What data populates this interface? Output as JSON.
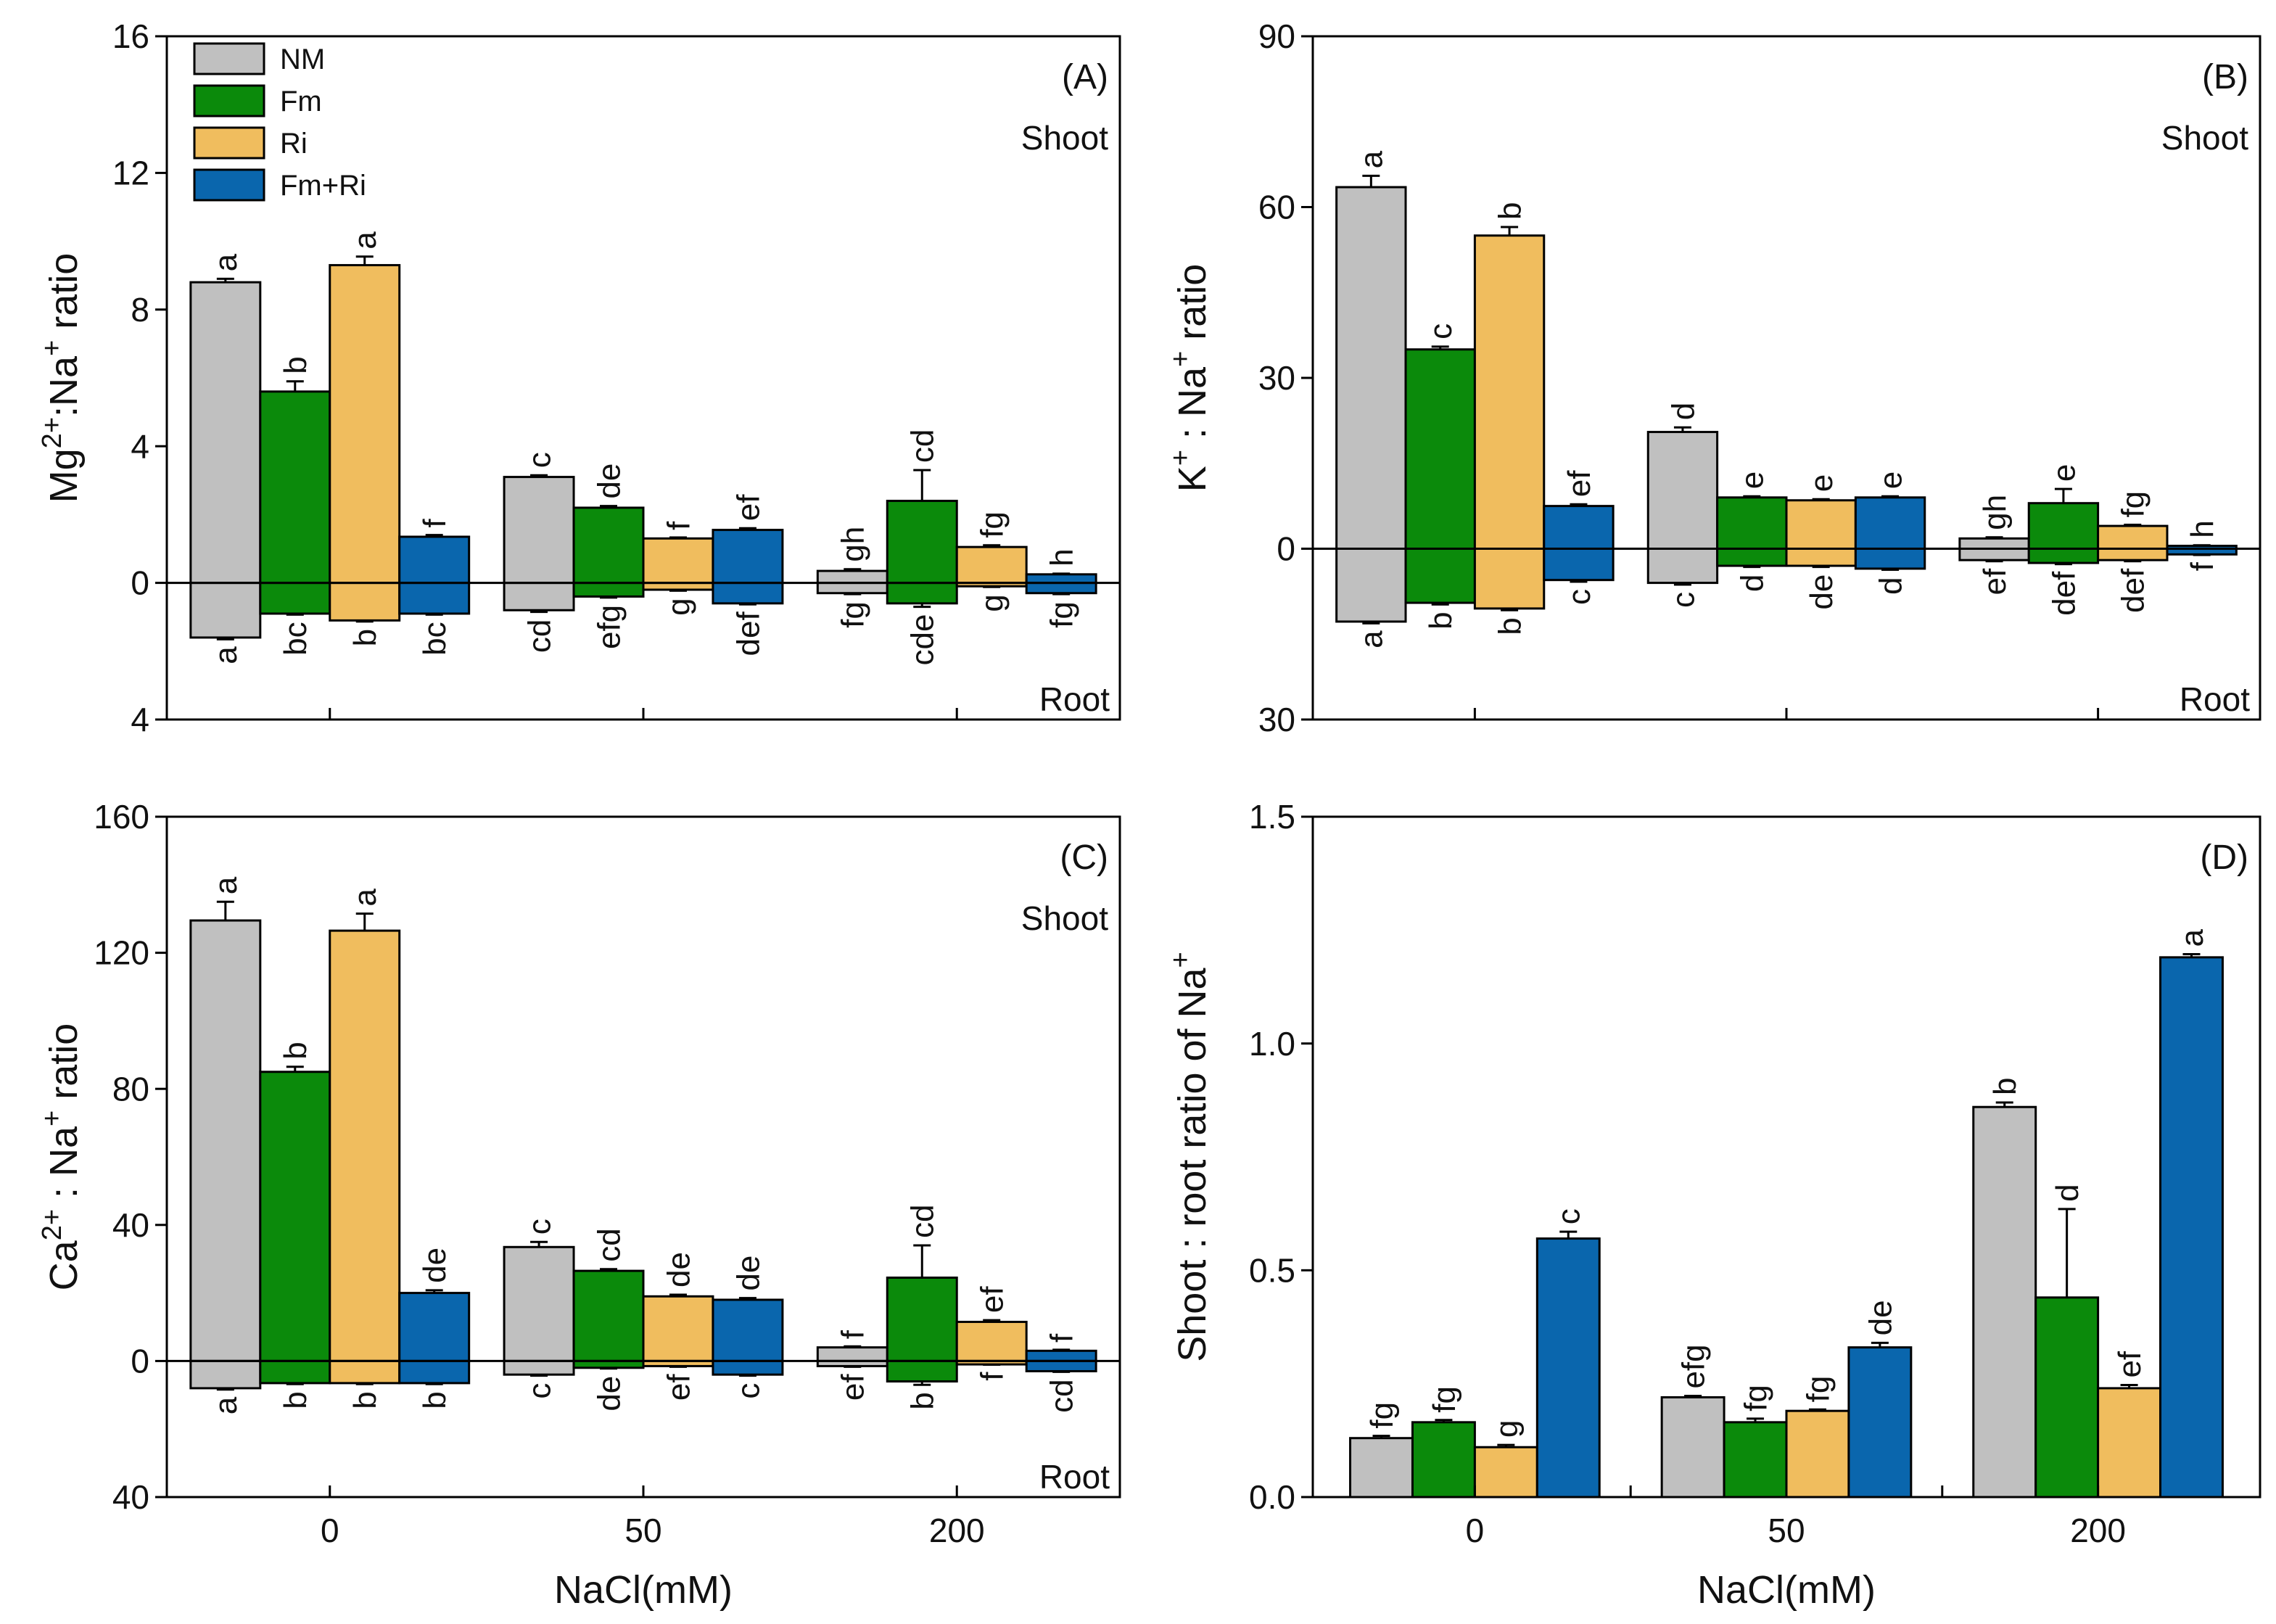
{
  "chart_data": [
    {
      "panel": "(A)",
      "type": "bar",
      "categories": [
        "0",
        "50",
        "200"
      ],
      "xtick_labels_visible": false,
      "xlabel": "",
      "ylabel_parts": [
        {
          "t": "Mg"
        },
        {
          "t": "2+",
          "sup": true
        },
        {
          "t": ":Na"
        },
        {
          "t": "+",
          "sup": true
        },
        {
          "t": " ratio"
        }
      ],
      "ylim": [
        -4,
        16
      ],
      "yticks": [
        16,
        12,
        8,
        4,
        0,
        -4
      ],
      "ytick_labels": [
        "16",
        "12",
        "8",
        "4",
        "0",
        "4"
      ],
      "top_note": "Shoot",
      "bottom_note": "Root",
      "legend": "top-left",
      "series": [
        {
          "name": "NM",
          "color": "#c0c0c0",
          "shoot": [
            8.8,
            3.1,
            0.35
          ],
          "shoot_err": [
            0.1,
            0.05,
            0.05
          ],
          "shoot_letters": [
            "a",
            "c",
            "gh"
          ],
          "root": [
            -1.6,
            -0.8,
            -0.3
          ],
          "root_err": [
            0.05,
            0.05,
            0.03
          ],
          "root_letters": [
            "a",
            "cd",
            "fg"
          ]
        },
        {
          "name": "Fm",
          "color": "#0b8a0b",
          "shoot": [
            5.6,
            2.2,
            2.4
          ],
          "shoot_err": [
            0.3,
            0.05,
            0.9
          ],
          "shoot_letters": [
            "b",
            "de",
            "cd"
          ],
          "root": [
            -0.9,
            -0.4,
            -0.6
          ],
          "root_err": [
            0.03,
            0.03,
            0.1
          ],
          "root_letters": [
            "bc",
            "efg",
            "cde"
          ]
        },
        {
          "name": "Ri",
          "color": "#f0bd5e",
          "shoot": [
            9.3,
            1.3,
            1.05
          ],
          "shoot_err": [
            0.25,
            0.03,
            0.05
          ],
          "shoot_letters": [
            "a",
            "f",
            "fg"
          ],
          "root": [
            -1.1,
            -0.2,
            -0.1
          ],
          "root_err": [
            0.03,
            0.03,
            0.02
          ],
          "root_letters": [
            "b",
            "g",
            "g"
          ]
        },
        {
          "name": "Fm+Ri",
          "color": "#0a66ad",
          "shoot": [
            1.35,
            1.55,
            0.25
          ],
          "shoot_err": [
            0.05,
            0.05,
            0.02
          ],
          "shoot_letters": [
            "f",
            "ef",
            "h"
          ],
          "root": [
            -0.9,
            -0.6,
            -0.3
          ],
          "root_err": [
            0.03,
            0.03,
            0.03
          ],
          "root_letters": [
            "bc",
            "def",
            "fg"
          ]
        }
      ]
    },
    {
      "panel": "(B)",
      "type": "bar",
      "categories": [
        "0",
        "50",
        "200"
      ],
      "xtick_labels_visible": false,
      "xlabel": "",
      "ylabel_parts": [
        {
          "t": "K"
        },
        {
          "t": "+",
          "sup": true
        },
        {
          "t": " : Na"
        },
        {
          "t": "+",
          "sup": true
        },
        {
          "t": " ratio"
        }
      ],
      "ylim": [
        -30,
        90
      ],
      "yticks": [
        90,
        60,
        30,
        0,
        -30
      ],
      "ytick_labels": [
        "90",
        "60",
        "30",
        "0",
        "30"
      ],
      "top_note": "Shoot",
      "bottom_note": "Root",
      "legend": null,
      "series": [
        {
          "name": "NM",
          "color": "#c0c0c0",
          "shoot": [
            63.5,
            20.5,
            1.8
          ],
          "shoot_err": [
            2.0,
            0.8,
            0.2
          ],
          "shoot_letters": [
            "a",
            "d",
            "gh"
          ],
          "root": [
            -12.8,
            -6.0,
            -2.0
          ],
          "root_err": [
            0.3,
            0.3,
            0.2
          ],
          "root_letters": [
            "a",
            "c",
            "ef"
          ]
        },
        {
          "name": "Fm",
          "color": "#0b8a0b",
          "shoot": [
            35.0,
            9.0,
            8.0
          ],
          "shoot_err": [
            0.5,
            0.2,
            2.5
          ],
          "shoot_letters": [
            "c",
            "e",
            "e"
          ],
          "root": [
            -9.5,
            -3.0,
            -2.5
          ],
          "root_err": [
            0.3,
            0.2,
            0.2
          ],
          "root_letters": [
            "b",
            "d",
            "def"
          ]
        },
        {
          "name": "Ri",
          "color": "#f0bd5e",
          "shoot": [
            55.0,
            8.5,
            4.0
          ],
          "shoot_err": [
            1.5,
            0.2,
            0.2
          ],
          "shoot_letters": [
            "b",
            "e",
            "fg"
          ],
          "root": [
            -10.5,
            -3.0,
            -2.0
          ],
          "root_err": [
            0.3,
            0.2,
            0.2
          ],
          "root_letters": [
            "b",
            "de",
            "def"
          ]
        },
        {
          "name": "Fm+Ri",
          "color": "#0a66ad",
          "shoot": [
            7.5,
            9.0,
            0.5
          ],
          "shoot_err": [
            0.3,
            0.2,
            0.1
          ],
          "shoot_letters": [
            "ef",
            "e",
            "h"
          ],
          "root": [
            -5.5,
            -3.5,
            -1.0
          ],
          "root_err": [
            0.3,
            0.2,
            0.1
          ],
          "root_letters": [
            "c",
            "d",
            "f"
          ]
        }
      ]
    },
    {
      "panel": "(C)",
      "type": "bar",
      "categories": [
        "0",
        "50",
        "200"
      ],
      "xtick_labels_visible": true,
      "xlabel": "NaCl(mM)",
      "ylabel_parts": [
        {
          "t": "Ca"
        },
        {
          "t": "2+",
          "sup": true
        },
        {
          "t": " : Na"
        },
        {
          "t": "+",
          "sup": true
        },
        {
          "t": " ratio"
        }
      ],
      "ylim": [
        -40,
        160
      ],
      "yticks": [
        160,
        120,
        80,
        40,
        0,
        -40
      ],
      "ytick_labels": [
        "160",
        "120",
        "80",
        "40",
        "0",
        "40"
      ],
      "top_note": "Shoot",
      "bottom_note": "Root",
      "legend": null,
      "series": [
        {
          "name": "NM",
          "color": "#c0c0c0",
          "shoot": [
            129.5,
            33.5,
            4.0
          ],
          "shoot_err": [
            5.5,
            1.5,
            0.3
          ],
          "shoot_letters": [
            "a",
            "c",
            "f"
          ],
          "root": [
            -8.0,
            -4.0,
            -1.5
          ],
          "root_err": [
            0.4,
            0.3,
            0.2
          ],
          "root_letters": [
            "a",
            "c",
            "ef"
          ]
        },
        {
          "name": "Fm",
          "color": "#0b8a0b",
          "shoot": [
            85.0,
            26.5,
            24.5
          ],
          "shoot_err": [
            1.5,
            0.5,
            9.5
          ],
          "shoot_letters": [
            "b",
            "cd",
            "cd"
          ],
          "root": [
            -6.5,
            -2.0,
            -6.0
          ],
          "root_err": [
            0.3,
            0.2,
            1.0
          ],
          "root_letters": [
            "b",
            "de",
            "b"
          ]
        },
        {
          "name": "Ri",
          "color": "#f0bd5e",
          "shoot": [
            126.5,
            19.0,
            11.5
          ],
          "shoot_err": [
            5.0,
            0.5,
            0.5
          ],
          "shoot_letters": [
            "a",
            "de",
            "ef"
          ],
          "root": [
            -6.5,
            -1.5,
            -1.0
          ],
          "root_err": [
            0.3,
            0.2,
            0.1
          ],
          "root_letters": [
            "b",
            "ef",
            "f"
          ]
        },
        {
          "name": "Fm+Ri",
          "color": "#0a66ad",
          "shoot": [
            20.0,
            18.0,
            3.0
          ],
          "shoot_err": [
            0.8,
            0.5,
            0.3
          ],
          "shoot_letters": [
            "de",
            "de",
            "f"
          ],
          "root": [
            -6.5,
            -4.0,
            -3.0
          ],
          "root_err": [
            0.3,
            0.3,
            0.2
          ],
          "root_letters": [
            "b",
            "c",
            "cd"
          ]
        }
      ]
    },
    {
      "panel": "(D)",
      "type": "bar",
      "categories": [
        "0",
        "50",
        "200"
      ],
      "xtick_labels_visible": true,
      "xlabel": "NaCl(mM)",
      "ylabel_parts": [
        {
          "t": "Shoot : root ratio of Na"
        },
        {
          "t": "+",
          "sup": true
        }
      ],
      "ylim": [
        0,
        1.5
      ],
      "yticks": [
        1.5,
        1.0,
        0.5,
        0.0
      ],
      "ytick_labels": [
        "1.5",
        "1.0",
        "0.5",
        "0.0"
      ],
      "legend": null,
      "series": [
        {
          "name": "NM",
          "color": "#c0c0c0",
          "values": [
            0.13,
            0.22,
            0.86
          ],
          "err": [
            0.005,
            0.003,
            0.01
          ],
          "letters": [
            "fg",
            "efg",
            "b"
          ]
        },
        {
          "name": "Fm",
          "color": "#0b8a0b",
          "values": [
            0.165,
            0.165,
            0.44
          ],
          "err": [
            0.005,
            0.008,
            0.195
          ],
          "letters": [
            "fg",
            "fg",
            "d"
          ]
        },
        {
          "name": "Ri",
          "color": "#f0bd5e",
          "values": [
            0.11,
            0.19,
            0.24
          ],
          "err": [
            0.005,
            0.003,
            0.007
          ],
          "letters": [
            "g",
            "fg",
            "ef"
          ]
        },
        {
          "name": "Fm+Ri",
          "color": "#0a66ad",
          "values": [
            0.57,
            0.33,
            1.19
          ],
          "err": [
            0.015,
            0.01,
            0.007
          ],
          "letters": [
            "c",
            "de",
            "a"
          ]
        }
      ]
    }
  ]
}
